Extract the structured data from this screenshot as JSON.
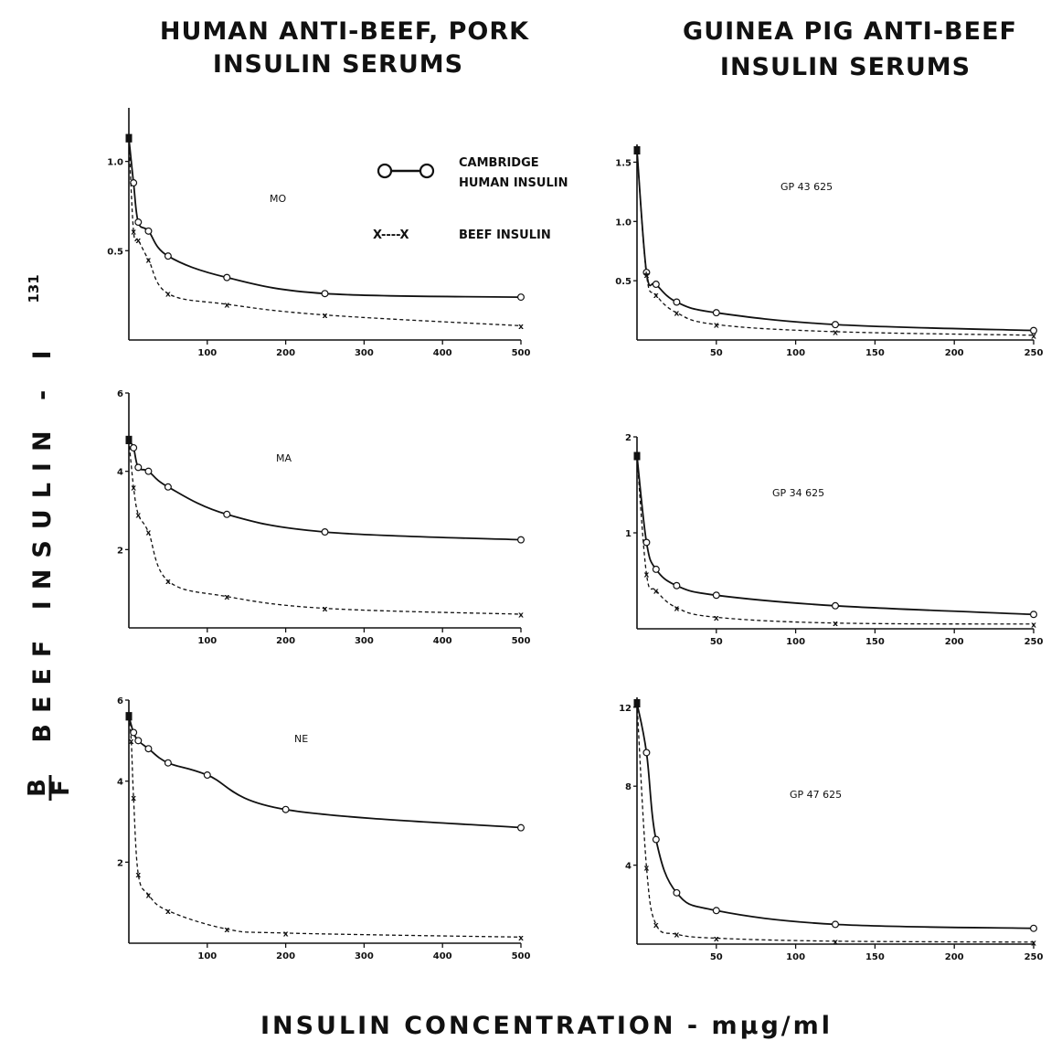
{
  "figure": {
    "left_title": [
      "HUMAN ANTI-BEEF, PORK",
      "INSULIN SERUMS"
    ],
    "right_title": [
      "GUINEA PIG ANTI-BEEF",
      "INSULIN SERUMS"
    ],
    "y_axis_label": "BEEF INSULIN - I",
    "y_axis_superscript": "131",
    "y_axis_fraction": {
      "numerator": "B",
      "denominator": "F"
    },
    "x_axis_label": "INSULIN CONCENTRATION - mµg/ml"
  },
  "legend": {
    "series_a_label": [
      "CAMBRIDGE",
      "HUMAN INSULIN"
    ],
    "series_b_label": "BEEF INSULIN",
    "series_b_symbol": "X----X"
  },
  "colors": {
    "ink": "#111111",
    "background": "#ffffff"
  },
  "chart_data": [
    {
      "type": "line",
      "panel_label": "MO",
      "x_ticks": [
        100,
        200,
        300,
        400,
        500
      ],
      "y_ticks": [
        0.5,
        1.0
      ],
      "xlim": [
        0,
        500
      ],
      "ylim": [
        0,
        1.3
      ],
      "series": [
        {
          "name": "CAMBRIDGE HUMAN INSULIN",
          "marker": "circle",
          "line": "solid",
          "x": [
            0,
            6,
            12,
            25,
            50,
            125,
            250,
            500
          ],
          "y": [
            1.13,
            0.88,
            0.66,
            0.61,
            0.47,
            0.35,
            0.26,
            0.24
          ]
        },
        {
          "name": "BEEF INSULIN",
          "marker": "x",
          "line": "dashed",
          "x": [
            0,
            6,
            12,
            25,
            50,
            125,
            250,
            500
          ],
          "y": [
            1.13,
            0.61,
            0.56,
            0.45,
            0.26,
            0.2,
            0.14,
            0.08
          ]
        }
      ]
    },
    {
      "type": "line",
      "panel_label": "GP 43 625",
      "x_ticks": [
        50,
        100,
        150,
        200,
        250
      ],
      "y_ticks": [
        0.5,
        1.0,
        1.5
      ],
      "xlim": [
        0,
        250
      ],
      "ylim": [
        0,
        1.65
      ],
      "series": [
        {
          "name": "CAMBRIDGE HUMAN INSULIN",
          "marker": "circle",
          "line": "solid",
          "x": [
            0,
            6,
            12,
            25,
            50,
            125,
            250
          ],
          "y": [
            1.6,
            0.57,
            0.47,
            0.32,
            0.23,
            0.13,
            0.08
          ]
        },
        {
          "name": "BEEF INSULIN",
          "marker": "x",
          "line": "dashed",
          "x": [
            0,
            6,
            12,
            25,
            50,
            125,
            250
          ],
          "y": [
            1.6,
            0.55,
            0.38,
            0.23,
            0.13,
            0.07,
            0.04
          ]
        }
      ]
    },
    {
      "type": "line",
      "panel_label": "MA",
      "x_ticks": [
        100,
        200,
        300,
        400,
        500
      ],
      "y_ticks": [
        2,
        4,
        6
      ],
      "xlim": [
        0,
        500
      ],
      "ylim": [
        0,
        6
      ],
      "series": [
        {
          "name": "CAMBRIDGE HUMAN INSULIN",
          "marker": "circle",
          "line": "solid",
          "x": [
            0,
            6,
            12,
            25,
            50,
            125,
            250,
            500
          ],
          "y": [
            4.8,
            4.6,
            4.1,
            4.0,
            3.6,
            2.9,
            2.45,
            2.25
          ]
        },
        {
          "name": "BEEF INSULIN",
          "marker": "x",
          "line": "dashed",
          "x": [
            0,
            6,
            12,
            25,
            50,
            125,
            250,
            500
          ],
          "y": [
            4.8,
            3.6,
            2.9,
            2.45,
            1.2,
            0.8,
            0.5,
            0.35
          ]
        }
      ]
    },
    {
      "type": "line",
      "panel_label": "GP 34 625",
      "x_ticks": [
        50,
        100,
        150,
        200,
        250
      ],
      "y_ticks": [
        1.0,
        2.0
      ],
      "xlim": [
        0,
        250
      ],
      "ylim": [
        0,
        2.0
      ],
      "series": [
        {
          "name": "CAMBRIDGE HUMAN INSULIN",
          "marker": "circle",
          "line": "solid",
          "x": [
            0,
            6,
            12,
            25,
            50,
            125,
            250
          ],
          "y": [
            1.8,
            0.9,
            0.62,
            0.45,
            0.35,
            0.24,
            0.15
          ]
        },
        {
          "name": "BEEF INSULIN",
          "marker": "x",
          "line": "dashed",
          "x": [
            0,
            6,
            12,
            25,
            50,
            125,
            250
          ],
          "y": [
            1.8,
            0.57,
            0.4,
            0.22,
            0.12,
            0.06,
            0.05
          ]
        }
      ]
    },
    {
      "type": "line",
      "panel_label": "NE",
      "x_ticks": [
        100,
        200,
        300,
        400,
        500
      ],
      "y_ticks": [
        2,
        4,
        6
      ],
      "xlim": [
        0,
        500
      ],
      "ylim": [
        0,
        6
      ],
      "series": [
        {
          "name": "CAMBRIDGE HUMAN INSULIN",
          "marker": "circle",
          "line": "solid",
          "x": [
            0,
            6,
            12,
            25,
            50,
            100,
            200,
            500
          ],
          "y": [
            5.6,
            5.2,
            5.0,
            4.8,
            4.45,
            4.15,
            3.3,
            2.85
          ]
        },
        {
          "name": "BEEF INSULIN",
          "marker": "x",
          "line": "dashed",
          "x": [
            0,
            3,
            6,
            12,
            25,
            50,
            125,
            200,
            500
          ],
          "y": [
            5.6,
            5.0,
            3.6,
            1.7,
            1.2,
            0.8,
            0.35,
            0.25,
            0.15
          ]
        }
      ]
    },
    {
      "type": "line",
      "panel_label": "GP 47 625",
      "x_ticks": [
        50,
        100,
        150,
        200,
        250
      ],
      "y_ticks": [
        4,
        8,
        12
      ],
      "xlim": [
        0,
        250
      ],
      "ylim": [
        0,
        12.5
      ],
      "series": [
        {
          "name": "CAMBRIDGE HUMAN INSULIN",
          "marker": "circle",
          "line": "solid",
          "x": [
            0,
            6,
            12,
            25,
            50,
            125,
            250
          ],
          "y": [
            12.2,
            9.7,
            5.3,
            2.6,
            1.7,
            1.0,
            0.8
          ]
        },
        {
          "name": "BEEF INSULIN",
          "marker": "x",
          "line": "dashed",
          "x": [
            0,
            6,
            12,
            25,
            50,
            125,
            250
          ],
          "y": [
            12.2,
            3.9,
            1.0,
            0.5,
            0.3,
            0.15,
            0.1
          ]
        }
      ]
    }
  ]
}
